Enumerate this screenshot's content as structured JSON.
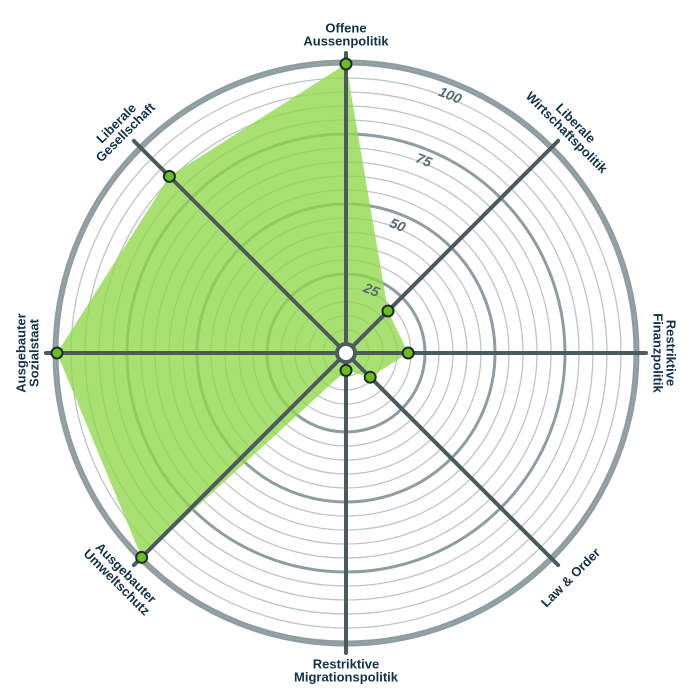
{
  "chart_data": {
    "type": "radar",
    "axes": [
      {
        "id": "aussen",
        "label_lines": [
          "Offene",
          "Aussenpolitik"
        ]
      },
      {
        "id": "wirtschaft",
        "label_lines": [
          "Liberale",
          "Wirtschaftspolitik"
        ]
      },
      {
        "id": "finanz",
        "label_lines": [
          "Restriktive",
          "Finanzpolitik"
        ]
      },
      {
        "id": "law",
        "label_lines": [
          "Law & Order"
        ]
      },
      {
        "id": "migration",
        "label_lines": [
          "Restriktive",
          "Migrationspolitik"
        ]
      },
      {
        "id": "umwelt",
        "label_lines": [
          "Ausgebauter",
          "Umweltschutz"
        ]
      },
      {
        "id": "sozial",
        "label_lines": [
          "Ausgebauter",
          "Sozialstaat"
        ]
      },
      {
        "id": "gesellschaft",
        "label_lines": [
          "Liberale",
          "Gesellschaft"
        ]
      }
    ],
    "values": [
      100,
      18,
      19,
      9,
      3,
      100,
      100,
      86
    ],
    "rlim": [
      0,
      100
    ],
    "ticks": [
      25,
      50,
      75,
      100
    ],
    "tick_labels": [
      "25",
      "50",
      "75",
      "100"
    ],
    "fill_color": "#8fd94a",
    "marker_color": "#6abf1f",
    "axis_color": "#4a5a5f",
    "ring_color": "#bcc5c8",
    "major_ring_color": "#8f9da1",
    "label_color": "#123247"
  }
}
